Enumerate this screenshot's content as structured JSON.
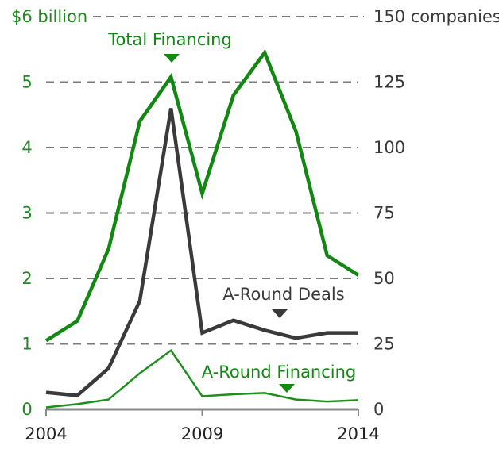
{
  "chart_data": {
    "type": "line",
    "x": [
      2004,
      2005,
      2006,
      2007,
      2008,
      2009,
      2010,
      2011,
      2012,
      2013,
      2014
    ],
    "x_tick_labels": [
      "2004",
      "2009",
      "2014"
    ],
    "y_left": {
      "range": [
        0,
        6
      ],
      "ticks": [
        0,
        1,
        2,
        3,
        4,
        5,
        6
      ],
      "tick_labels": [
        "0",
        "1",
        "2",
        "3",
        "4",
        "5",
        "$6 billion"
      ]
    },
    "y_right": {
      "range": [
        0,
        150
      ],
      "ticks": [
        0,
        25,
        50,
        75,
        100,
        125,
        150
      ],
      "tick_labels": [
        "0",
        "25",
        "50",
        "75",
        "100",
        "125",
        "150 companies"
      ]
    },
    "grid": true,
    "series": [
      {
        "name": "Total Financing",
        "axis": "left",
        "color": "#128812",
        "values": [
          1.05,
          1.35,
          2.45,
          4.4,
          5.08,
          3.3,
          4.8,
          5.45,
          4.25,
          2.35,
          2.05
        ]
      },
      {
        "name": "A-Round Deals",
        "axis": "right",
        "color": "#3a3a3a",
        "values": [
          6.5,
          5.3,
          15.7,
          41.4,
          115,
          29.2,
          34,
          30.2,
          27.2,
          29.2,
          29.2
        ]
      },
      {
        "name": "A-Round Financing",
        "axis": "left",
        "color": "#1e8f1e",
        "values": [
          0.03,
          0.08,
          0.15,
          0.55,
          0.9,
          0.2,
          0.23,
          0.25,
          0.15,
          0.12,
          0.14
        ]
      }
    ]
  }
}
